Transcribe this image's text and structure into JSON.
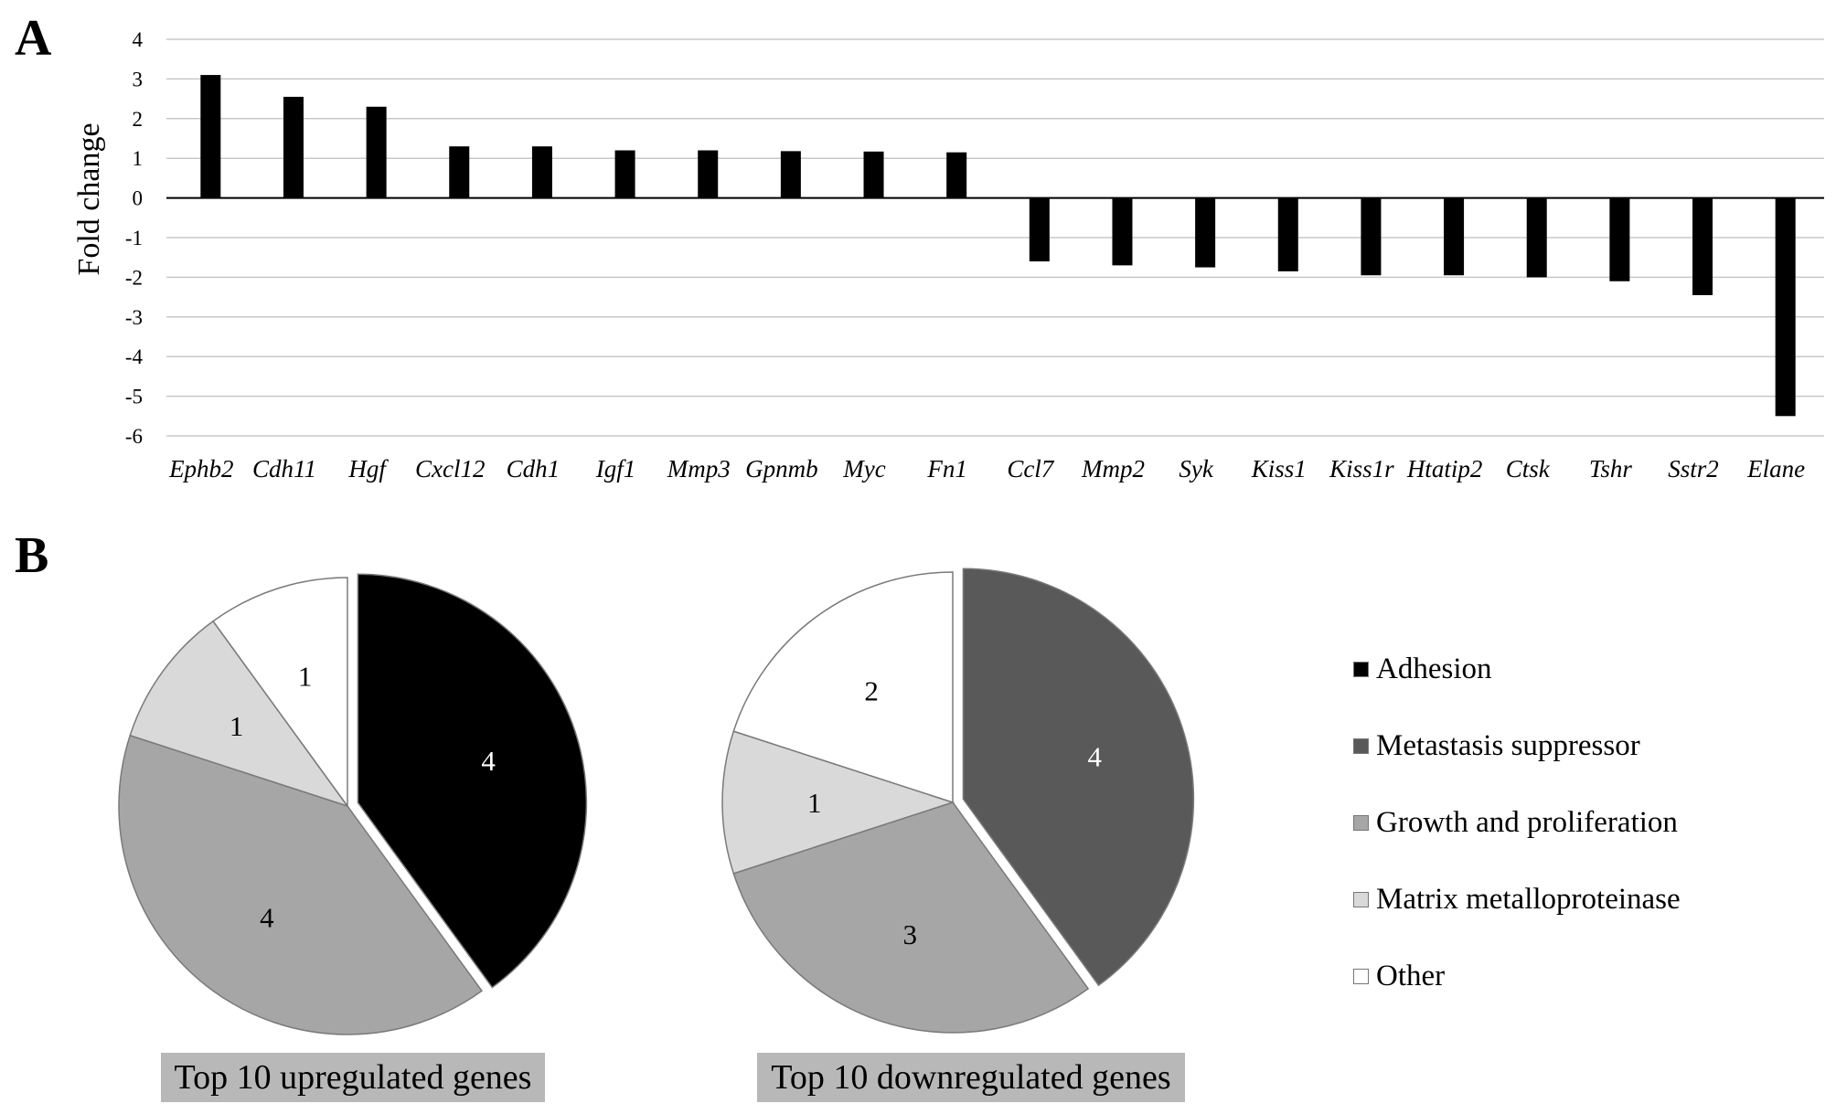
{
  "panels": {
    "a_label": "A",
    "b_label": "B"
  },
  "chart_data": [
    {
      "type": "bar",
      "ylabel": "Fold  change",
      "ylim": [
        -6,
        4
      ],
      "yticks": [
        4,
        3,
        2,
        1,
        0,
        -1,
        -2,
        -3,
        -4,
        -5,
        -6
      ],
      "grid": true,
      "categories": [
        "Ephb2",
        "Cdh11",
        "Hgf",
        "Cxcl12",
        "Cdh1",
        "Igf1",
        "Mmp3",
        "Gpnmb",
        "Myc",
        "Fn1",
        "Ccl7",
        "Mmp2",
        "Syk",
        "Kiss1",
        "Kiss1r",
        "Htatip2",
        "Ctsk",
        "Tshr",
        "Sstr2",
        "Elane"
      ],
      "values": [
        3.1,
        2.55,
        2.3,
        1.3,
        1.3,
        1.2,
        1.2,
        1.18,
        1.17,
        1.15,
        -1.6,
        -1.7,
        -1.75,
        -1.85,
        -1.95,
        -1.95,
        -2.0,
        -2.1,
        -2.45,
        -5.5
      ],
      "bar_color": "#000000"
    },
    {
      "type": "pie",
      "title": "Top 10 upregulated genes",
      "slices": [
        {
          "category": "Adhesion",
          "value": 4,
          "label": "4",
          "exploded": true
        },
        {
          "category": "Growth and proliferation",
          "value": 4,
          "label": "4"
        },
        {
          "category": "Matrix metalloproteinase",
          "value": 1,
          "label": "1"
        },
        {
          "category": "Other",
          "value": 1,
          "label": "1"
        }
      ]
    },
    {
      "type": "pie",
      "title": "Top 10 downregulated genes",
      "slices": [
        {
          "category": "Metastasis suppressor",
          "value": 4,
          "label": "4",
          "exploded": true
        },
        {
          "category": "Growth and proliferation",
          "value": 3,
          "label": "3"
        },
        {
          "category": "Matrix metalloproteinase",
          "value": 1,
          "label": "1"
        },
        {
          "category": "Other",
          "value": 2,
          "label": "2"
        }
      ]
    }
  ],
  "legend": {
    "placement": "right",
    "items": [
      {
        "label": "Adhesion",
        "color": "#000000"
      },
      {
        "label": "Metastasis suppressor",
        "color": "#595959"
      },
      {
        "label": "Growth and proliferation",
        "color": "#a6a6a6"
      },
      {
        "label": "Matrix metalloproteinase",
        "color": "#d9d9d9"
      },
      {
        "label": "Other",
        "color": "#ffffff"
      }
    ]
  }
}
